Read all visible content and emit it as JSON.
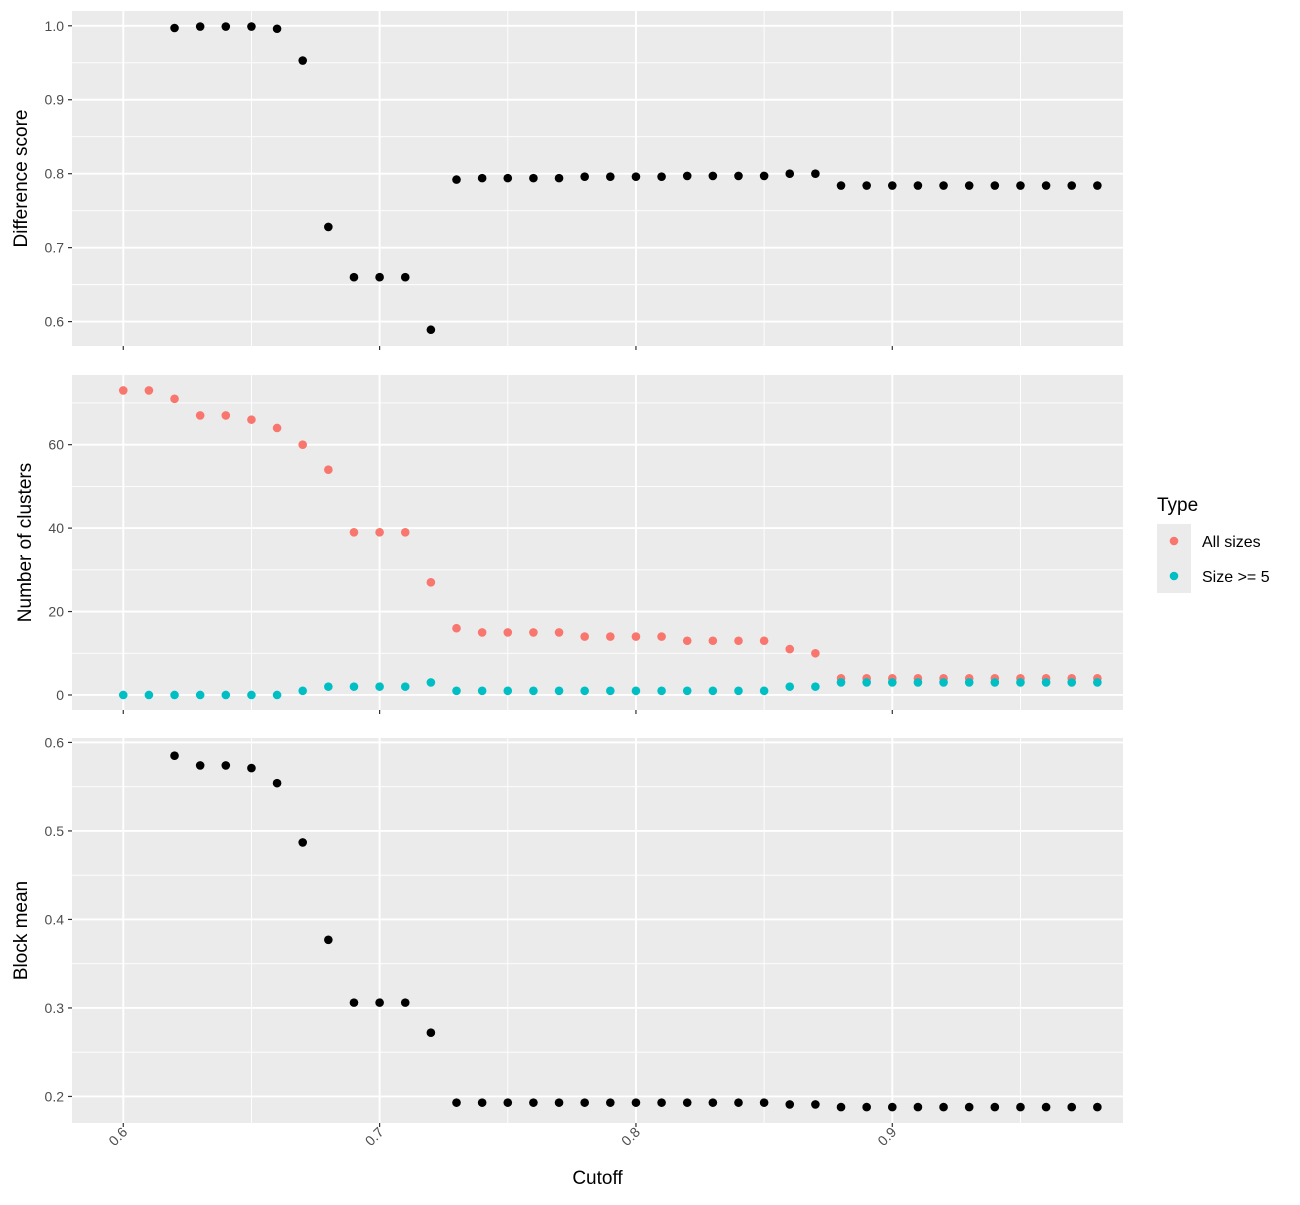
{
  "chart_data": {
    "type": "scatter",
    "x": [
      0.6,
      0.61,
      0.62,
      0.63,
      0.64,
      0.65,
      0.66,
      0.67,
      0.68,
      0.69,
      0.7,
      0.71,
      0.72,
      0.73,
      0.74,
      0.75,
      0.76,
      0.77,
      0.78,
      0.79,
      0.8,
      0.81,
      0.82,
      0.83,
      0.84,
      0.85,
      0.86,
      0.87,
      0.88,
      0.89,
      0.9,
      0.91,
      0.92,
      0.93,
      0.94,
      0.95,
      0.96,
      0.97,
      0.98
    ],
    "xlabel": "Cutoff",
    "xlim": [
      0.58,
      0.99
    ],
    "xticks": [
      0.6,
      0.7,
      0.8,
      0.9
    ],
    "xtick_labels": [
      "0.6",
      "0.7",
      "0.8",
      "0.9"
    ],
    "background_color": "#ebebeb",
    "grid_color": "#ffffff",
    "legend": {
      "title": "Type",
      "position": "right",
      "entries": [
        {
          "label": "All sizes",
          "color": "#F8766D"
        },
        {
          "label": "Size >= 5",
          "color": "#00BFC4"
        }
      ]
    },
    "panels": [
      {
        "ylabel": "Difference score",
        "ylim": [
          0.567,
          1.02
        ],
        "yticks": [
          0.6,
          0.7,
          0.8,
          0.9,
          1.0
        ],
        "ytick_labels": [
          "0.6",
          "0.7",
          "0.8",
          "0.9",
          "1.0"
        ],
        "series": [
          {
            "color": "#000000",
            "values": [
              null,
              null,
              0.997,
              0.999,
              0.999,
              0.999,
              0.996,
              0.953,
              0.728,
              0.66,
              0.66,
              0.66,
              0.589,
              0.792,
              0.794,
              0.794,
              0.794,
              0.794,
              0.796,
              0.796,
              0.796,
              0.796,
              0.797,
              0.797,
              0.797,
              0.797,
              0.8,
              0.8,
              0.784,
              0.784,
              0.784,
              0.784,
              0.784,
              0.784,
              0.784,
              0.784,
              0.784,
              0.784,
              0.784
            ]
          }
        ]
      },
      {
        "ylabel": "Number of clusters",
        "ylim": [
          -3.6,
          76.7
        ],
        "yticks": [
          0,
          20,
          40,
          60
        ],
        "ytick_labels": [
          "0",
          "20",
          "40",
          "60"
        ],
        "series": [
          {
            "name": "All sizes",
            "color": "#F8766D",
            "values": [
              73,
              73,
              71,
              67,
              67,
              66,
              64,
              60,
              54,
              39,
              39,
              39,
              27,
              16,
              15,
              15,
              15,
              15,
              14,
              14,
              14,
              14,
              13,
              13,
              13,
              13,
              11,
              10,
              4,
              4,
              4,
              4,
              4,
              4,
              4,
              4,
              4,
              4,
              4
            ]
          },
          {
            "name": "Size >= 5",
            "color": "#00BFC4",
            "values": [
              0,
              0,
              0,
              0,
              0,
              0,
              0,
              1,
              2,
              2,
              2,
              2,
              3,
              1,
              1,
              1,
              1,
              1,
              1,
              1,
              1,
              1,
              1,
              1,
              1,
              1,
              2,
              2,
              3,
              3,
              3,
              3,
              3,
              3,
              3,
              3,
              3,
              3,
              3
            ]
          }
        ]
      },
      {
        "ylabel": "Block mean",
        "ylim": [
          0.17,
          0.605
        ],
        "yticks": [
          0.2,
          0.3,
          0.4,
          0.5,
          0.6
        ],
        "ytick_labels": [
          "0.2",
          "0.3",
          "0.4",
          "0.5",
          "0.6"
        ],
        "series": [
          {
            "color": "#000000",
            "values": [
              null,
              null,
              0.585,
              0.574,
              0.574,
              0.571,
              0.554,
              0.487,
              0.377,
              0.306,
              0.306,
              0.306,
              0.272,
              0.193,
              0.193,
              0.193,
              0.193,
              0.193,
              0.193,
              0.193,
              0.193,
              0.193,
              0.193,
              0.193,
              0.193,
              0.193,
              0.191,
              0.191,
              0.188,
              0.188,
              0.188,
              0.188,
              0.188,
              0.188,
              0.188,
              0.188,
              0.188,
              0.188,
              0.188
            ]
          }
        ]
      }
    ]
  }
}
